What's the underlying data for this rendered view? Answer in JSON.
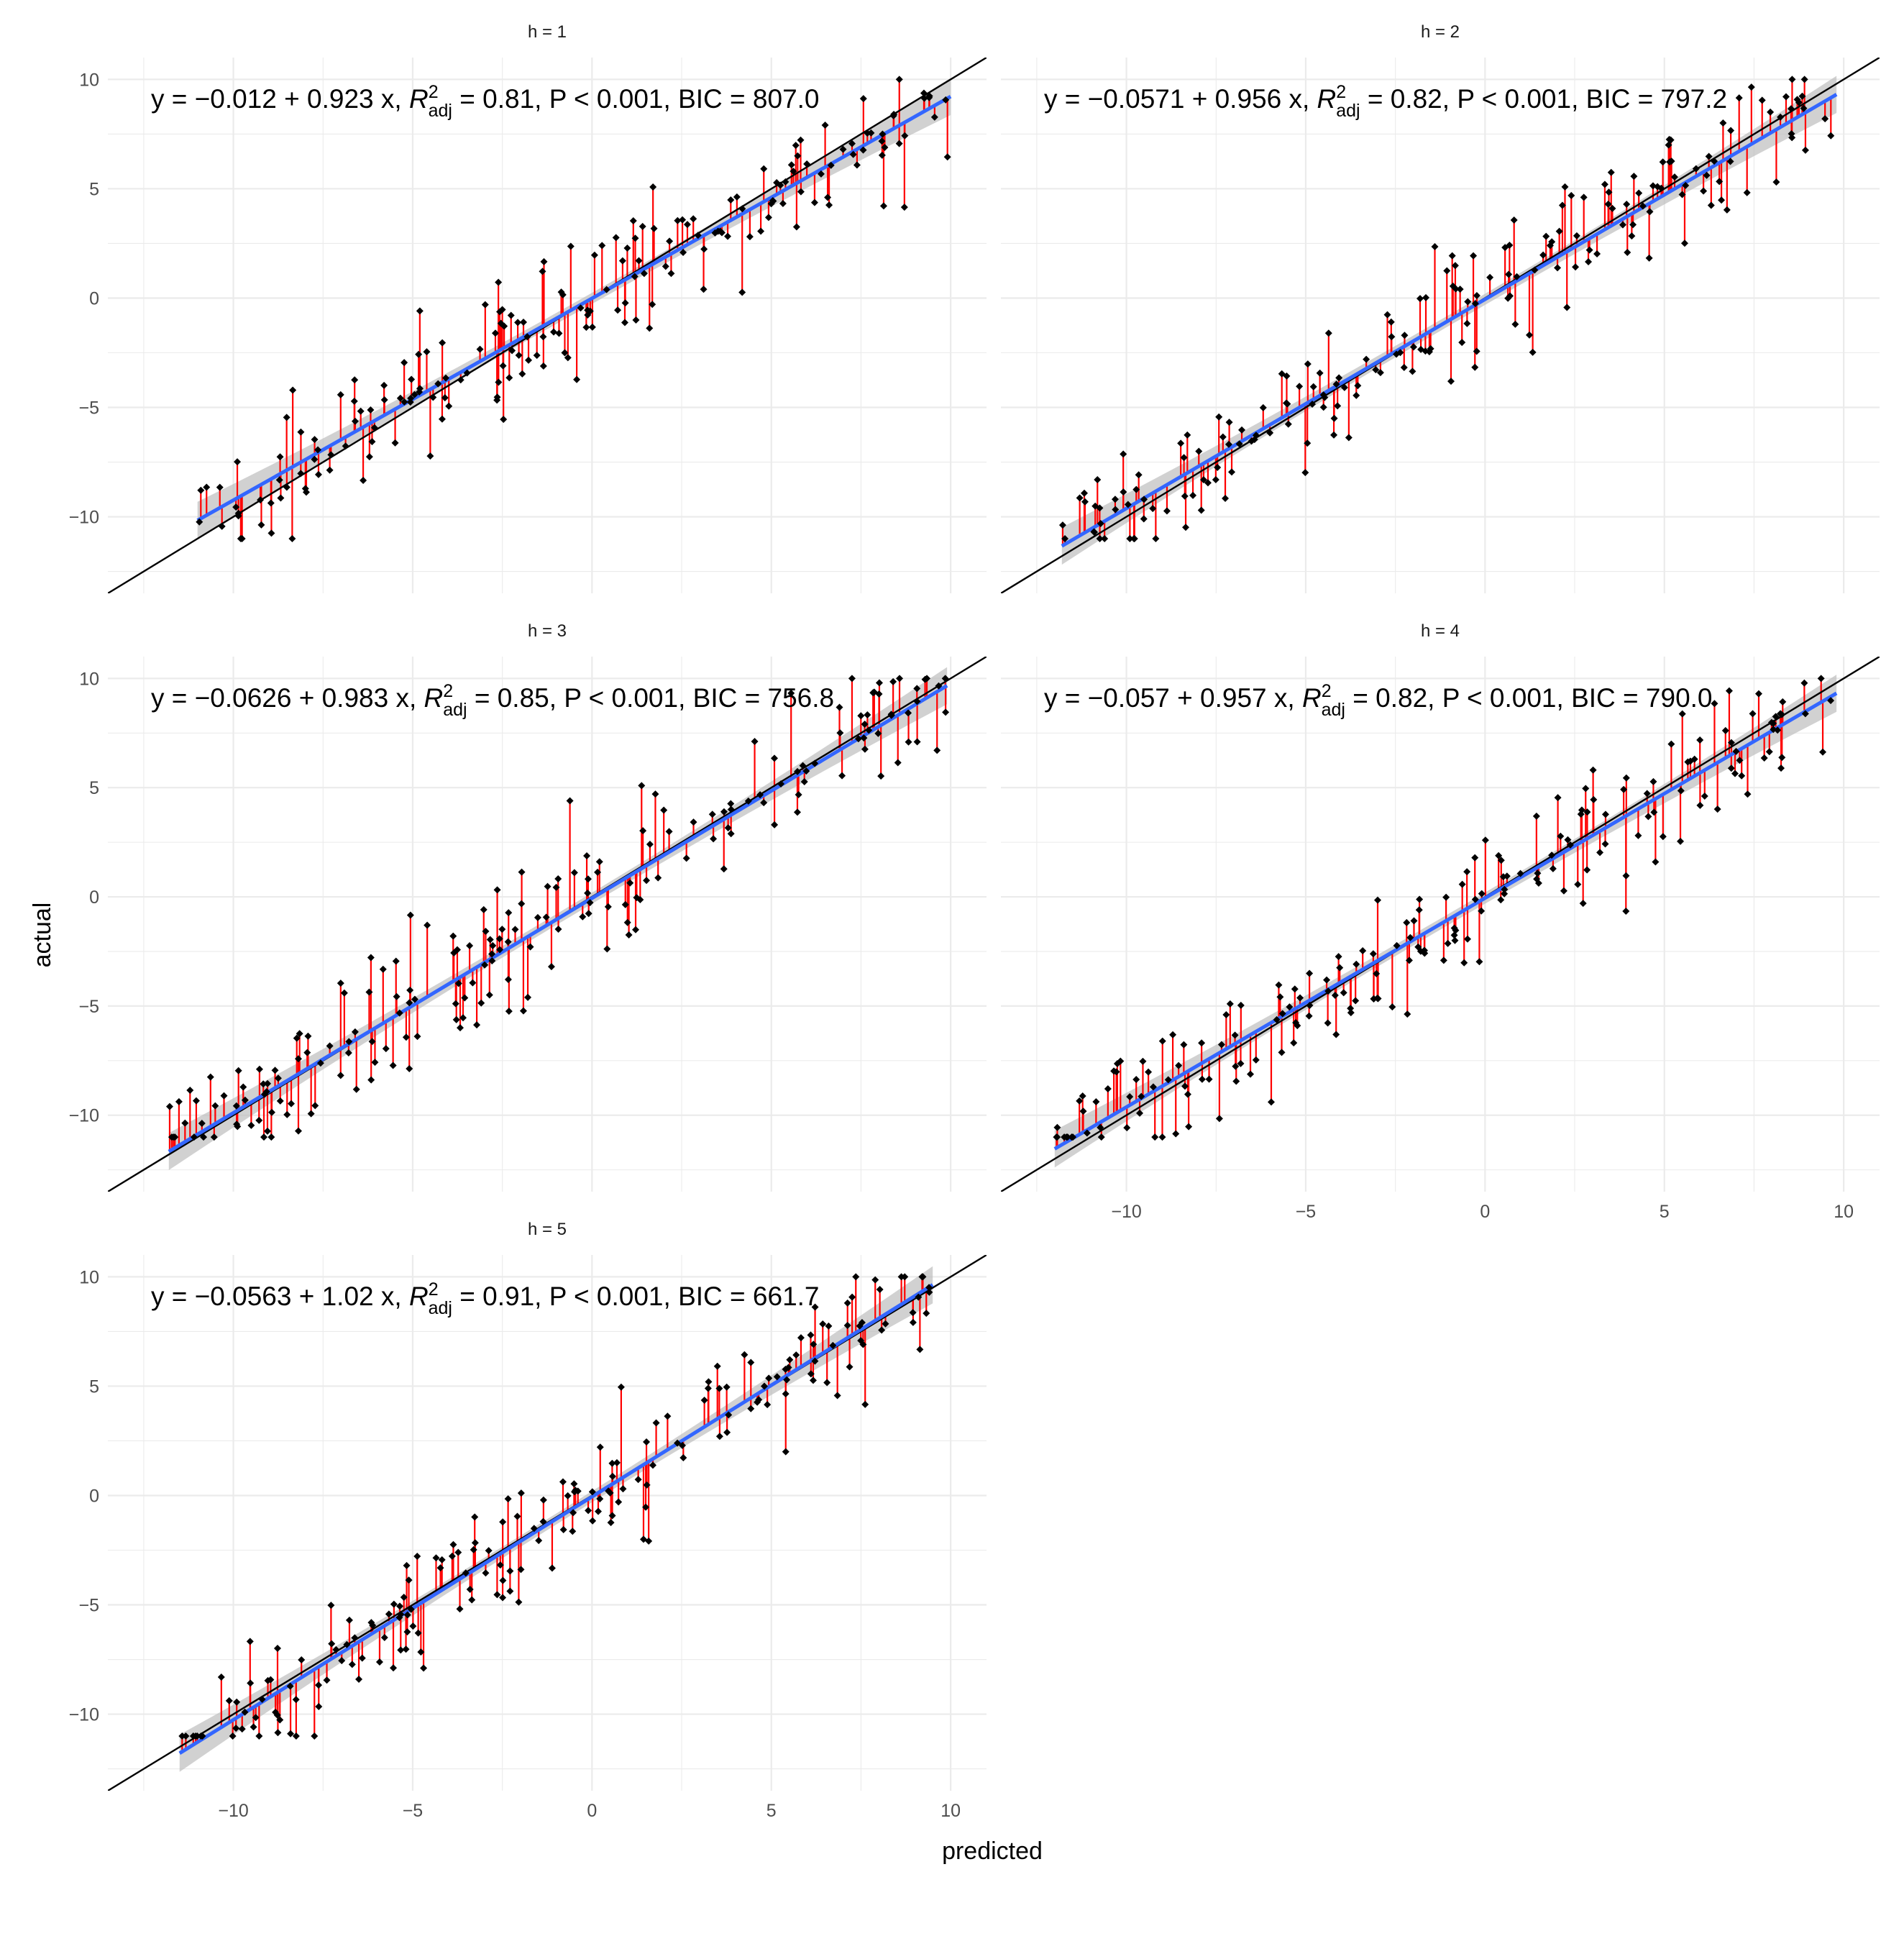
{
  "xlabel": "predicted",
  "ylabel": "actual",
  "colors": {
    "fit_line": "#3366ff",
    "confidence_band": "#bdbdbd",
    "identity_line": "#000000",
    "residual_segments": "#ff0000",
    "points": "#000000",
    "grid": "#ebebeb"
  },
  "chart_data": [
    {
      "type": "scatter",
      "panel": "h = 1",
      "xlim": [
        -13.5,
        11.0
      ],
      "ylim": [
        -13.5,
        11.0
      ],
      "xticks": [
        -10,
        -5,
        0,
        5,
        10
      ],
      "yticks": [
        -10,
        -5,
        0,
        5,
        10
      ],
      "tick_labels": {
        "y": [
          "−10",
          "−5",
          "0",
          "5",
          "10"
        ],
        "x": []
      },
      "grid": true,
      "fit": {
        "intercept": -0.012,
        "slope": 0.923,
        "x_range": [
          -11.0,
          10.0
        ]
      },
      "identity_line": true,
      "annotation": {
        "eq": "y = −0.012 + 0.923 x,",
        "r2": "0.81,",
        "p": "P < 0.001,",
        "bic": "BIC = 807.0"
      },
      "seed": 101
    },
    {
      "type": "scatter",
      "panel": "h = 2",
      "xlim": [
        -13.5,
        11.0
      ],
      "ylim": [
        -13.5,
        11.0
      ],
      "xticks": [
        -10,
        -5,
        0,
        5,
        10
      ],
      "yticks": [
        -10,
        -5,
        0,
        5,
        10
      ],
      "tick_labels": {
        "y": [],
        "x": []
      },
      "grid": true,
      "fit": {
        "intercept": -0.0571,
        "slope": 0.956,
        "x_range": [
          -11.8,
          9.8
        ]
      },
      "identity_line": true,
      "annotation": {
        "eq": "y = −0.0571 + 0.956 x,",
        "r2": "0.82,",
        "p": "P < 0.001,",
        "bic": "BIC = 797.2"
      },
      "seed": 202
    },
    {
      "type": "scatter",
      "panel": "h = 3",
      "xlim": [
        -13.5,
        11.0
      ],
      "ylim": [
        -13.5,
        11.0
      ],
      "xticks": [
        -10,
        -5,
        0,
        5,
        10
      ],
      "yticks": [
        -10,
        -5,
        0,
        5,
        10
      ],
      "tick_labels": {
        "y": [
          "−10",
          "−5",
          "0",
          "5",
          "10"
        ],
        "x": []
      },
      "grid": true,
      "fit": {
        "intercept": -0.0626,
        "slope": 0.983,
        "x_range": [
          -11.8,
          9.9
        ]
      },
      "identity_line": true,
      "annotation": {
        "eq": "y = −0.0626 + 0.983 x,",
        "r2": "0.85,",
        "p": "P < 0.001,",
        "bic": "BIC = 756.8"
      },
      "seed": 303
    },
    {
      "type": "scatter",
      "panel": "h = 4",
      "xlim": [
        -13.5,
        11.0
      ],
      "ylim": [
        -13.5,
        11.0
      ],
      "xticks": [
        -10,
        -5,
        0,
        5,
        10
      ],
      "yticks": [
        -10,
        -5,
        0,
        5,
        10
      ],
      "tick_labels": {
        "y": [],
        "x": [
          "−10",
          "−5",
          "0",
          "5",
          "10"
        ]
      },
      "grid": true,
      "fit": {
        "intercept": -0.057,
        "slope": 0.957,
        "x_range": [
          -12.0,
          9.8
        ]
      },
      "identity_line": true,
      "annotation": {
        "eq": "y = −0.057 + 0.957 x,",
        "r2": "0.82,",
        "p": "P < 0.001,",
        "bic": "BIC = 790.0"
      },
      "seed": 404
    },
    {
      "type": "scatter",
      "panel": "h = 5",
      "xlim": [
        -13.5,
        11.0
      ],
      "ylim": [
        -13.5,
        11.0
      ],
      "xticks": [
        -10,
        -5,
        0,
        5,
        10
      ],
      "yticks": [
        -10,
        -5,
        0,
        5,
        10
      ],
      "tick_labels": {
        "y": [
          "−10",
          "−5",
          "0",
          "5",
          "10"
        ],
        "x": [
          "−10",
          "−5",
          "0",
          "5",
          "10"
        ]
      },
      "grid": true,
      "fit": {
        "intercept": -0.0563,
        "slope": 1.02,
        "x_range": [
          -11.5,
          9.5
        ]
      },
      "identity_line": true,
      "annotation": {
        "eq": "y = −0.0563 + 1.02 x,",
        "r2": "0.91,",
        "p": "P < 0.001,",
        "bic": "BIC = 661.7"
      },
      "seed": 505
    }
  ]
}
